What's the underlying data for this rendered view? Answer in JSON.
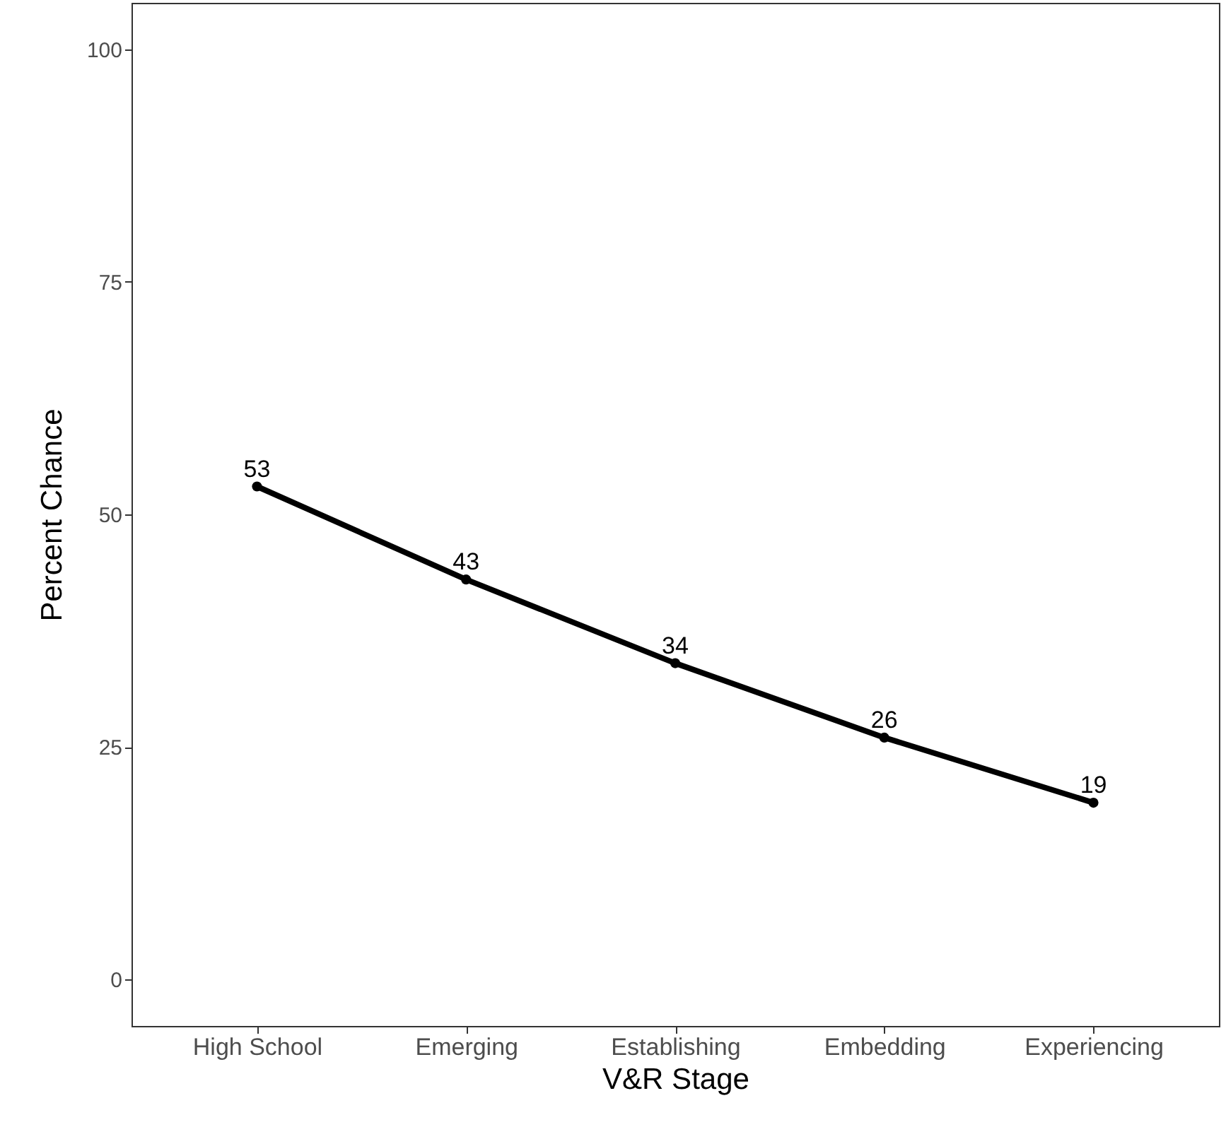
{
  "chart_data": {
    "type": "line",
    "xlabel": "V&R Stage",
    "ylabel": "Percent Chance",
    "categories": [
      "High School",
      "Emerging",
      "Establishing",
      "Embedding",
      "Experiencing"
    ],
    "series": [
      {
        "color": "#000000",
        "values": [
          53,
          43,
          34,
          26,
          19
        ]
      }
    ],
    "ylim": [
      -5,
      105
    ],
    "yticks": [
      0,
      25,
      50,
      75,
      100
    ],
    "grid": false,
    "marker": "circle",
    "line_style": "solid",
    "data_labels": true
  }
}
